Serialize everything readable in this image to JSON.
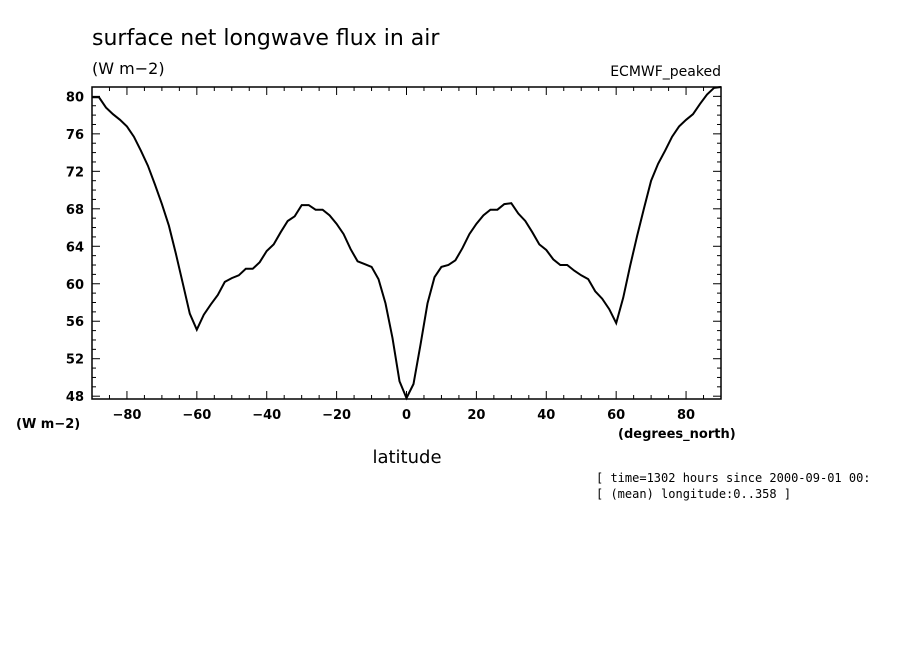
{
  "chart_data": {
    "type": "line",
    "title": "surface net longwave flux in air",
    "units_top": "(W m−2)",
    "dataset": "ECMWF_peaked",
    "ylabel": "(W m−2)",
    "xlabel": "latitude",
    "xunits": "(degrees_north)",
    "xlim": [
      -90,
      90
    ],
    "ylim": [
      47.7,
      81
    ],
    "xticks": [
      -80,
      -60,
      -40,
      -20,
      0,
      20,
      40,
      60,
      80
    ],
    "xtick_labels": [
      "−80",
      "−60",
      "−40",
      "−20",
      "0",
      "20",
      "40",
      "60",
      "80"
    ],
    "yticks": [
      48,
      52,
      56,
      60,
      64,
      68,
      72,
      76,
      80
    ],
    "ytick_labels": [
      "48",
      "52",
      "56",
      "60",
      "64",
      "68",
      "72",
      "76",
      "80"
    ],
    "notes": [
      "[ time=1302 hours since 2000-09-01 00:",
      "[ (mean) longitude:0..358 ]"
    ],
    "series": [
      {
        "x": [
          -90,
          -88,
          -86,
          -84,
          -82,
          -80,
          -78,
          -76,
          -74,
          -72,
          -70,
          -68,
          -66,
          -64,
          -62,
          -60,
          -58,
          -56,
          -54,
          -52,
          -50,
          -48,
          -46,
          -44,
          -42,
          -40,
          -38,
          -36,
          -34,
          -32,
          -30,
          -28,
          -26,
          -24,
          -22,
          -20,
          -18,
          -16,
          -14,
          -12,
          -10,
          -8,
          -6,
          -4,
          -2,
          0,
          2,
          4,
          6,
          8,
          10,
          12,
          14,
          16,
          18,
          20,
          22,
          24,
          26,
          28,
          30,
          32,
          34,
          36,
          38,
          40,
          42,
          44,
          46,
          48,
          50,
          52,
          54,
          56,
          58,
          60,
          62,
          64,
          66,
          68,
          70,
          72,
          74,
          76,
          78,
          80,
          82,
          84,
          86,
          88,
          90
        ],
        "values": [
          79.9,
          79.9,
          78.8,
          78.1,
          77.5,
          76.8,
          75.7,
          74.2,
          72.6,
          70.6,
          68.5,
          66.2,
          63.2,
          60.0,
          56.8,
          55.1,
          56.7,
          57.8,
          58.8,
          60.2,
          60.6,
          60.9,
          61.6,
          61.6,
          62.3,
          63.5,
          64.2,
          65.5,
          66.7,
          67.2,
          68.4,
          68.4,
          67.9,
          67.9,
          67.3,
          66.4,
          65.3,
          63.7,
          62.4,
          62.1,
          61.8,
          60.5,
          57.9,
          54.2,
          49.6,
          47.8,
          49.3,
          53.5,
          57.9,
          60.7,
          61.8,
          62.0,
          62.5,
          63.8,
          65.3,
          66.4,
          67.3,
          67.9,
          67.9,
          68.5,
          68.6,
          67.5,
          66.7,
          65.5,
          64.2,
          63.6,
          62.6,
          62.0,
          62.0,
          61.4,
          60.9,
          60.5,
          59.2,
          58.4,
          57.3,
          55.8,
          58.5,
          61.9,
          65.1,
          68.1,
          71.0,
          72.8,
          74.2,
          75.7,
          76.8,
          77.5,
          78.1,
          79.2,
          80.2,
          80.9,
          81.0
        ]
      }
    ]
  }
}
